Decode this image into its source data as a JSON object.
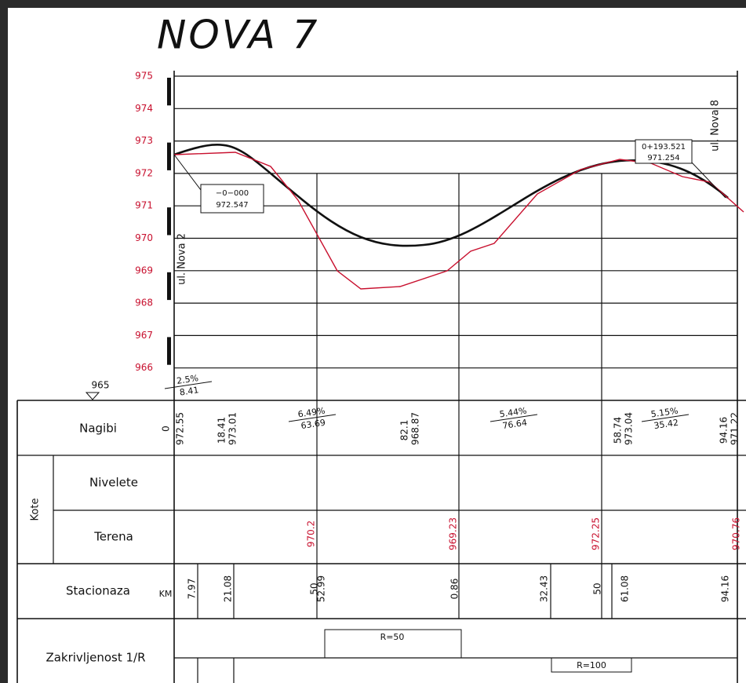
{
  "title": "NOVA 7",
  "elevation_labels": [
    "975",
    "974",
    "973",
    "972",
    "971",
    "970",
    "969",
    "968",
    "967",
    "966"
  ],
  "datum": "965",
  "streets": [
    "ul. Nova 2",
    "ul. Nova 8"
  ],
  "points": [
    {
      "station": "−0−000",
      "elevation": "972.547"
    },
    {
      "station": "0+193.521",
      "elevation": "971.254"
    }
  ],
  "slopes": [
    {
      "grade": "2.5%",
      "length": "8.41"
    },
    {
      "grade": "6.49%",
      "length": "63.69"
    },
    {
      "grade": "5.44%",
      "length": "76.64"
    },
    {
      "grade": "5.15%",
      "length": "35.42"
    }
  ],
  "table": {
    "labels": {
      "nagibi": "Nagibi",
      "kote": "Kote",
      "nivelete": "Nivelete",
      "terena": "Terena",
      "stacionaza": "Stacionaza",
      "km": "KM",
      "zakrivljenost": "Zakrivljenost 1/R"
    },
    "nagibi_values": [
      [
        "0",
        "972.55"
      ],
      [
        "18.41",
        "973.01"
      ],
      [
        "82.1",
        "968.87"
      ],
      [
        "58.74",
        "973.04"
      ],
      [
        "94.16",
        "971.22"
      ]
    ],
    "terena_values": [
      "970.2",
      "969.23",
      "972.25",
      "970.76"
    ],
    "stacionaza_values": [
      "7.97",
      "21.08",
      "50",
      "52.99",
      "0.86",
      "32.43",
      "50",
      "61.08",
      "94.16"
    ],
    "radii": [
      "R=50",
      "R=100"
    ]
  }
}
